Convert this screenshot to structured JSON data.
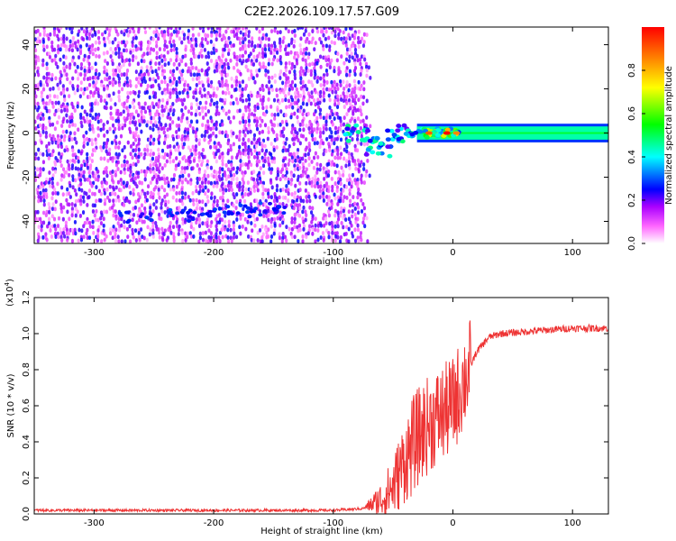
{
  "title": "C2E2.2026.109.17.57.G09",
  "chart_data": [
    {
      "type": "heatmap",
      "xlabel": "Height of straight line (km)",
      "ylabel": "Frequency (Hz)",
      "xlim": [
        -350,
        130
      ],
      "ylim": [
        -50,
        48
      ],
      "x_ticks": [
        -300,
        -200,
        -100,
        0,
        100
      ],
      "y_ticks": [
        -40,
        -20,
        0,
        20,
        40
      ],
      "grid": false,
      "colorbar": {
        "label": "Normalized spectral amplitude",
        "range": [
          0.0,
          1.0
        ],
        "ticks": [
          0.0,
          0.2,
          0.4,
          0.6,
          0.8
        ],
        "colors": [
          "#ffffff",
          "#ff00ff",
          "#0000ff",
          "#00ffff",
          "#00ff00",
          "#ffff00",
          "#ff0000"
        ]
      },
      "features": [
        {
          "name": "noise-field",
          "x_range": [
            -350,
            -77
          ],
          "f_range": [
            -50,
            48
          ],
          "amplitude": 0.1
        },
        {
          "name": "carrier-line",
          "x_range": [
            -30,
            130
          ],
          "center_hz": 0,
          "width_hz": 3,
          "amplitude": 0.45
        },
        {
          "name": "transition-blobs",
          "x_range": [
            -90,
            5
          ],
          "center_hz": 0,
          "amplitude": 0.7
        },
        {
          "name": "low-freq-tail",
          "x_range": [
            -280,
            -140
          ],
          "f_range": [
            -42,
            -28
          ],
          "amplitude": 0.2
        }
      ]
    },
    {
      "type": "line",
      "xlabel": "Height of straight line (km)",
      "ylabel": "SNR (10 * v/v)",
      "scale_label": "(x10",
      "scale_exponent": "4",
      "xlim": [
        -350,
        130
      ],
      "ylim": [
        0,
        1.2
      ],
      "x_ticks": [
        -300,
        -200,
        -100,
        0,
        100
      ],
      "y_ticks": [
        0.0,
        0.2,
        0.4,
        0.6,
        0.8,
        1.0,
        1.2
      ],
      "grid": false,
      "series": [
        {
          "name": "SNR",
          "color": "#ee3333",
          "x": [
            -350,
            -200,
            -100,
            -75,
            -60,
            -50,
            -40,
            -30,
            -20,
            -10,
            0,
            10,
            20,
            30,
            40,
            60,
            80,
            100,
            130
          ],
          "values": [
            0.02,
            0.02,
            0.02,
            0.03,
            0.08,
            0.15,
            0.3,
            0.42,
            0.5,
            0.55,
            0.6,
            0.75,
            0.9,
            0.98,
            1.0,
            1.01,
            1.02,
            1.03,
            1.03
          ]
        }
      ]
    }
  ]
}
